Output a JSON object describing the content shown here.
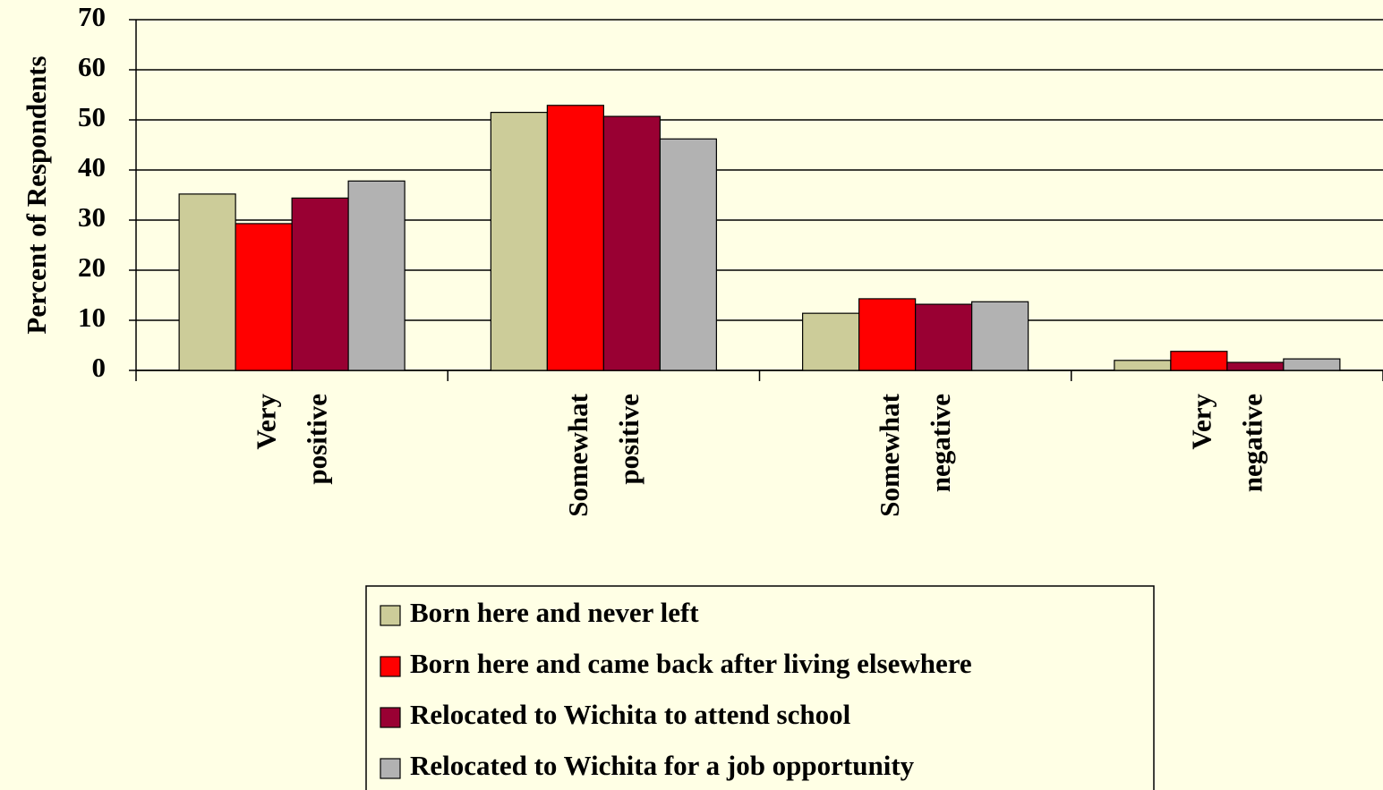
{
  "chart_data": {
    "type": "bar",
    "y_label": "Percent of Respondents",
    "categories": [
      "Very positive",
      "Somewhat positive",
      "Somewhat negative",
      "Very negative"
    ],
    "series": [
      {
        "name": "Born here and never left",
        "color": "#cccc99",
        "values": [
          35.2,
          51.5,
          11.4,
          2.0
        ]
      },
      {
        "name": "Born here and came back after living elsewhere",
        "color": "#ff0000",
        "values": [
          29.3,
          52.9,
          14.3,
          3.8
        ]
      },
      {
        "name": "Relocated to Wichita to attend school",
        "color": "#990033",
        "values": [
          34.4,
          50.7,
          13.2,
          1.6
        ]
      },
      {
        "name": "Relocated to Wichita for a job opportunity",
        "color": "#b2b2b2",
        "values": [
          37.8,
          46.2,
          13.7,
          2.3
        ]
      }
    ],
    "ylim": [
      0,
      70
    ],
    "yticks": [
      0,
      10,
      20,
      30,
      40,
      50,
      60,
      70
    ],
    "grid": true,
    "legend": "bottom"
  }
}
